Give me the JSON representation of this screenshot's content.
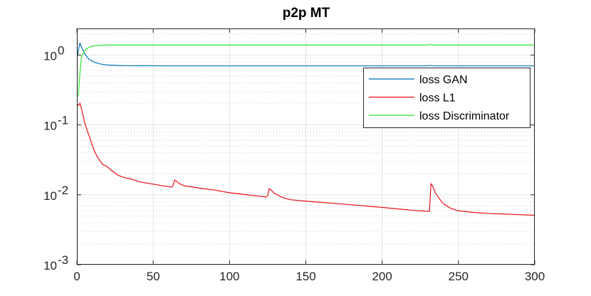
{
  "chart_data": {
    "type": "line",
    "title": "p2p MT",
    "xlabel": "",
    "ylabel": "",
    "xlim": [
      0,
      300
    ],
    "ylim": [
      0.001,
      2
    ],
    "yscale": "log",
    "grid": true,
    "minor_grid": true,
    "legend_position": "right",
    "x_ticks": [
      0,
      50,
      100,
      150,
      200,
      250,
      300
    ],
    "x_tick_labels": [
      "0",
      "50",
      "100",
      "150",
      "200",
      "250",
      "300"
    ],
    "y_ticks": [
      {
        "value": 1,
        "base": "10",
        "exp": "0"
      },
      {
        "value": 0.1,
        "base": "10",
        "exp": "-1"
      },
      {
        "value": 0.01,
        "base": "10",
        "exp": "-2"
      },
      {
        "value": 0.001,
        "base": "10",
        "exp": "-3"
      }
    ],
    "series": [
      {
        "name": "loss GAN",
        "color": "#0072BD",
        "points": [
          [
            0,
            0.85
          ],
          [
            1,
            1.2
          ],
          [
            2,
            1.48
          ],
          [
            3,
            1.3
          ],
          [
            5,
            1.05
          ],
          [
            8,
            0.86
          ],
          [
            12,
            0.78
          ],
          [
            16,
            0.74
          ],
          [
            20,
            0.72
          ],
          [
            30,
            0.705
          ],
          [
            60,
            0.7
          ],
          [
            100,
            0.7
          ],
          [
            150,
            0.7
          ],
          [
            200,
            0.7
          ],
          [
            230,
            0.7
          ],
          [
            232,
            0.71
          ],
          [
            234,
            0.7
          ],
          [
            300,
            0.7
          ]
        ]
      },
      {
        "name": "loss L1",
        "color": "#E8101A",
        "points": [
          [
            0,
            0.2
          ],
          [
            1,
            0.19
          ],
          [
            2,
            0.205
          ],
          [
            3,
            0.17
          ],
          [
            5,
            0.11
          ],
          [
            7,
            0.08
          ],
          [
            9,
            0.06
          ],
          [
            11,
            0.045
          ],
          [
            13,
            0.036
          ],
          [
            15,
            0.031
          ],
          [
            17,
            0.027
          ],
          [
            19,
            0.026
          ],
          [
            21,
            0.024
          ],
          [
            23,
            0.022
          ],
          [
            25,
            0.0205
          ],
          [
            27,
            0.019
          ],
          [
            30,
            0.018
          ],
          [
            33,
            0.0172
          ],
          [
            36,
            0.0168
          ],
          [
            40,
            0.0155
          ],
          [
            45,
            0.0148
          ],
          [
            50,
            0.0142
          ],
          [
            55,
            0.0136
          ],
          [
            60,
            0.0131
          ],
          [
            62,
            0.0129
          ],
          [
            63,
            0.0135
          ],
          [
            64,
            0.0162
          ],
          [
            65,
            0.0158
          ],
          [
            67,
            0.0145
          ],
          [
            70,
            0.0135
          ],
          [
            80,
            0.0125
          ],
          [
            90,
            0.0117
          ],
          [
            100,
            0.0107
          ],
          [
            110,
            0.0101
          ],
          [
            120,
            0.0095
          ],
          [
            124,
            0.0093
          ],
          [
            125,
            0.0098
          ],
          [
            126,
            0.0122
          ],
          [
            127,
            0.0118
          ],
          [
            130,
            0.0103
          ],
          [
            135,
            0.0091
          ],
          [
            140,
            0.0085
          ],
          [
            150,
            0.0081
          ],
          [
            160,
            0.0078
          ],
          [
            170,
            0.0075
          ],
          [
            180,
            0.0072
          ],
          [
            190,
            0.0069
          ],
          [
            200,
            0.0066
          ],
          [
            210,
            0.0063
          ],
          [
            220,
            0.006
          ],
          [
            230,
            0.0058
          ],
          [
            231,
            0.0058
          ],
          [
            232,
            0.0145
          ],
          [
            233,
            0.0135
          ],
          [
            235,
            0.0105
          ],
          [
            238,
            0.0085
          ],
          [
            240,
            0.0075
          ],
          [
            245,
            0.0064
          ],
          [
            250,
            0.0059
          ],
          [
            260,
            0.0056
          ],
          [
            270,
            0.0054
          ],
          [
            280,
            0.0053
          ],
          [
            290,
            0.0052
          ],
          [
            300,
            0.0051
          ]
        ]
      },
      {
        "name": "loss Discriminator",
        "color": "#2EE62E",
        "points": [
          [
            0,
            0.24
          ],
          [
            1,
            0.28
          ],
          [
            2,
            0.55
          ],
          [
            3,
            0.95
          ],
          [
            5,
            1.15
          ],
          [
            8,
            1.3
          ],
          [
            12,
            1.36
          ],
          [
            16,
            1.38
          ],
          [
            20,
            1.39
          ],
          [
            40,
            1.39
          ],
          [
            100,
            1.39
          ],
          [
            150,
            1.39
          ],
          [
            200,
            1.39
          ],
          [
            230,
            1.39
          ],
          [
            232,
            1.42
          ],
          [
            234,
            1.39
          ],
          [
            300,
            1.39
          ]
        ]
      }
    ]
  }
}
